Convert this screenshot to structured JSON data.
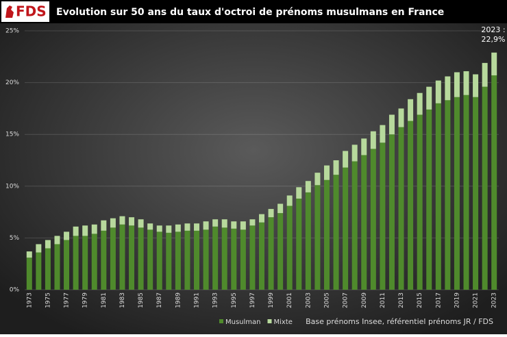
{
  "logo": "FDS",
  "chart_data": {
    "type": "stacked_bar",
    "title": "Evolution sur 50 ans du taux d'octroi de prénoms musulmans en France",
    "annotation": [
      "2023 :",
      "22,9%"
    ],
    "source": "Base prénoms Insee, référentiel prénoms JR / FDS",
    "categories": [
      "1973",
      null,
      "1975",
      null,
      "1977",
      null,
      "1979",
      null,
      "1981",
      null,
      "1983",
      null,
      "1985",
      null,
      "1987",
      null,
      "1989",
      null,
      "1991",
      null,
      "1993",
      null,
      "1995",
      null,
      "1997",
      null,
      "1999",
      null,
      "2001",
      null,
      "2003",
      null,
      "2005",
      null,
      "2007",
      null,
      "2009",
      null,
      "2011",
      null,
      "2013",
      null,
      "2015",
      null,
      "2017",
      null,
      "2019",
      null,
      "2021",
      null,
      "2023"
    ],
    "series": [
      {
        "name": "Musulman",
        "color": "#4f8a2c",
        "values": [
          3.1,
          3.6,
          4.0,
          4.4,
          4.8,
          5.2,
          5.2,
          5.4,
          5.7,
          6.0,
          6.3,
          6.2,
          6.0,
          5.8,
          5.6,
          5.5,
          5.6,
          5.7,
          5.7,
          5.8,
          6.1,
          6.0,
          5.9,
          5.8,
          6.2,
          6.5,
          7.0,
          7.4,
          8.1,
          8.8,
          9.4,
          10.1,
          10.6,
          11.1,
          11.8,
          12.4,
          13.0,
          13.6,
          14.2,
          15.0,
          15.7,
          16.3,
          16.9,
          17.4,
          18.0,
          18.3,
          18.6,
          18.8,
          18.6,
          19.6,
          20.7
        ]
      },
      {
        "name": "Mixte",
        "color": "#b7d99c",
        "values": [
          0.6,
          0.8,
          0.8,
          0.8,
          0.8,
          0.9,
          1.0,
          0.9,
          1.0,
          0.9,
          0.8,
          0.8,
          0.8,
          0.6,
          0.6,
          0.7,
          0.7,
          0.7,
          0.7,
          0.8,
          0.7,
          0.8,
          0.7,
          0.8,
          0.6,
          0.8,
          0.8,
          0.9,
          1.0,
          1.1,
          1.1,
          1.2,
          1.4,
          1.4,
          1.6,
          1.6,
          1.6,
          1.7,
          1.7,
          1.9,
          1.8,
          2.1,
          2.1,
          2.2,
          2.2,
          2.3,
          2.4,
          2.3,
          2.2,
          2.3,
          2.2
        ]
      }
    ],
    "ylim": [
      0,
      25
    ],
    "yticks": [
      {
        "value": 0,
        "label": "0%"
      },
      {
        "value": 5,
        "label": "5%"
      },
      {
        "value": 10,
        "label": "10%"
      },
      {
        "value": 15,
        "label": "15%"
      },
      {
        "value": 20,
        "label": "20%"
      },
      {
        "value": 25,
        "label": "25%"
      }
    ],
    "grid": true
  }
}
